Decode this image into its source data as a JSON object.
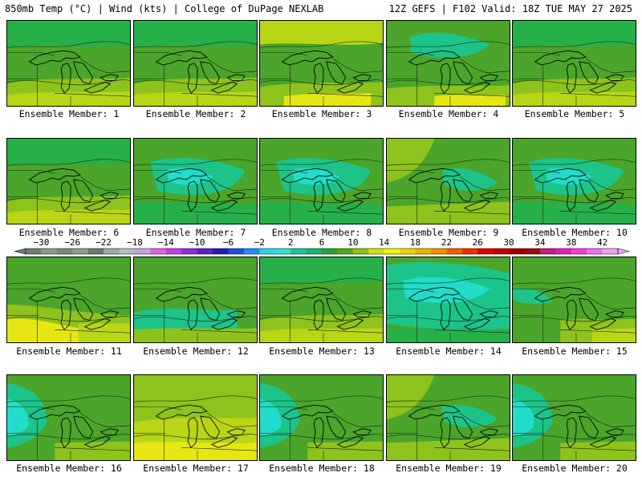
{
  "header": {
    "title_left": "850mb Temp (°C) | Wind (kts) | College of DuPage NEXLAB",
    "title_right": "12Z GEFS | F102 Valid: 18Z TUE MAY 27 2025"
  },
  "panel_label_prefix": "Ensemble Member:",
  "members": [
    {
      "label": "Ensemble Member: 1",
      "member": 1,
      "pattern": "warm-south"
    },
    {
      "label": "Ensemble Member: 2",
      "member": 2,
      "pattern": "warm-south"
    },
    {
      "label": "Ensemble Member: 3",
      "member": 3,
      "pattern": "warm-north"
    },
    {
      "label": "Ensemble Member: 4",
      "member": 4,
      "pattern": "cool-north"
    },
    {
      "label": "Ensemble Member: 5",
      "member": 5,
      "pattern": "warm-south"
    },
    {
      "label": "Ensemble Member: 6",
      "member": 6,
      "pattern": "warm-south"
    },
    {
      "label": "Ensemble Member: 7",
      "member": 7,
      "pattern": "cool"
    },
    {
      "label": "Ensemble Member: 8",
      "member": 8,
      "pattern": "cool"
    },
    {
      "label": "Ensemble Member: 9",
      "member": 9,
      "pattern": "mixed"
    },
    {
      "label": "Ensemble Member: 10",
      "member": 10,
      "pattern": "cool"
    },
    {
      "label": "Ensemble Member: 11",
      "member": 11,
      "pattern": "warm-southwest"
    },
    {
      "label": "Ensemble Member: 12",
      "member": 12,
      "pattern": "cool-south"
    },
    {
      "label": "Ensemble Member: 13",
      "member": 13,
      "pattern": "warm-south"
    },
    {
      "label": "Ensemble Member: 14",
      "member": 14,
      "pattern": "coolest"
    },
    {
      "label": "Ensemble Member: 15",
      "member": 15,
      "pattern": "warm-southeast"
    },
    {
      "label": "Ensemble Member: 16",
      "member": 16,
      "pattern": "cool-west"
    },
    {
      "label": "Ensemble Member: 17",
      "member": 17,
      "pattern": "warmest"
    },
    {
      "label": "Ensemble Member: 18",
      "member": 18,
      "pattern": "cool-west"
    },
    {
      "label": "Ensemble Member: 19",
      "member": 19,
      "pattern": "mixed"
    },
    {
      "label": "Ensemble Member: 20",
      "member": 20,
      "pattern": "cool-west"
    }
  ],
  "colorbar": {
    "tick_labels": [
      "-30",
      "-26",
      "-22",
      "-18",
      "-14",
      "-10",
      "-6",
      "-2",
      "2",
      "6",
      "10",
      "14",
      "18",
      "22",
      "26",
      "30",
      "34",
      "38",
      "42"
    ],
    "min": -32,
    "max": 44,
    "step": 2,
    "colors": [
      "#6f7f6f",
      "#8a9a8a",
      "#7a8a7a",
      "#8e9e8e",
      "#6a7a6a",
      "#9aaaaa",
      "#b0c0c0",
      "#c8a0e0",
      "#e060e0",
      "#c040e0",
      "#9030d0",
      "#6020c0",
      "#2020b0",
      "#2050e0",
      "#2090f0",
      "#30d0f0",
      "#30e0d0",
      "#20c0a0",
      "#20b070",
      "#30a030",
      "#50a820",
      "#90c010",
      "#d0e010",
      "#f0f010",
      "#f0d000",
      "#f0b000",
      "#f09000",
      "#f06000",
      "#f03000",
      "#e00000",
      "#c00000",
      "#a00000",
      "#901010",
      "#c02080",
      "#e020c0",
      "#f040e0",
      "#f070f0",
      "#f0a0f0"
    ]
  },
  "palette": {
    "cyan": "#20dcc8",
    "teal": "#1cc48a",
    "green": "#26b04a",
    "mid_green": "#4aa52a",
    "yellow_green": "#8ec21c",
    "light_yellow_green": "#b8d616",
    "yellow": "#e6e614",
    "lake_outline": "#000000",
    "border": "#000000"
  }
}
